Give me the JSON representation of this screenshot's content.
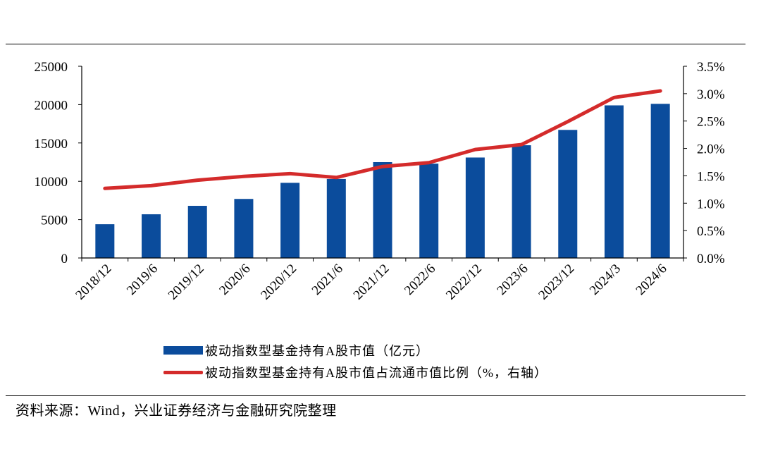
{
  "chart_data": {
    "type": "bar",
    "title": "",
    "categories": [
      "2018/12",
      "2019/6",
      "2019/12",
      "2020/6",
      "2020/12",
      "2021/6",
      "2021/12",
      "2022/6",
      "2022/12",
      "2023/6",
      "2023/12",
      "2024/3",
      "2024/6"
    ],
    "series": [
      {
        "name": "被动指数型基金持有A股市值（亿元）",
        "type": "bar",
        "axis": "left",
        "color": "#0b4c9c",
        "values": [
          4400,
          5700,
          6800,
          7700,
          9800,
          10300,
          12500,
          12300,
          13100,
          14700,
          16700,
          19900,
          20100
        ]
      },
      {
        "name": "被动指数型基金持有A股市值占流通市值比例（%，右轴）",
        "type": "line",
        "axis": "right",
        "color": "#d42b2b",
        "values": [
          1.27,
          1.32,
          1.42,
          1.49,
          1.54,
          1.47,
          1.67,
          1.74,
          1.98,
          2.07,
          2.49,
          2.93,
          3.05
        ]
      }
    ],
    "y_left": {
      "ylim": [
        0,
        25000
      ],
      "ticks": [
        "0",
        "5000",
        "10000",
        "15000",
        "20000",
        "25000"
      ]
    },
    "y_right": {
      "ylim": [
        0,
        3.5
      ],
      "ticks": [
        "0.0%",
        "0.5%",
        "1.0%",
        "1.5%",
        "2.0%",
        "2.5%",
        "3.0%",
        "3.5%"
      ]
    },
    "xlabel": "",
    "ylabel": "",
    "grid": false,
    "legend": "bottom"
  },
  "legend": {
    "bar_label": "被动指数型基金持有A股市值（亿元）",
    "line_label": "被动指数型基金持有A股市值占流通市值比例（%，右轴）"
  },
  "source": "资料来源：Wind，兴业证券经济与金融研究院整理"
}
